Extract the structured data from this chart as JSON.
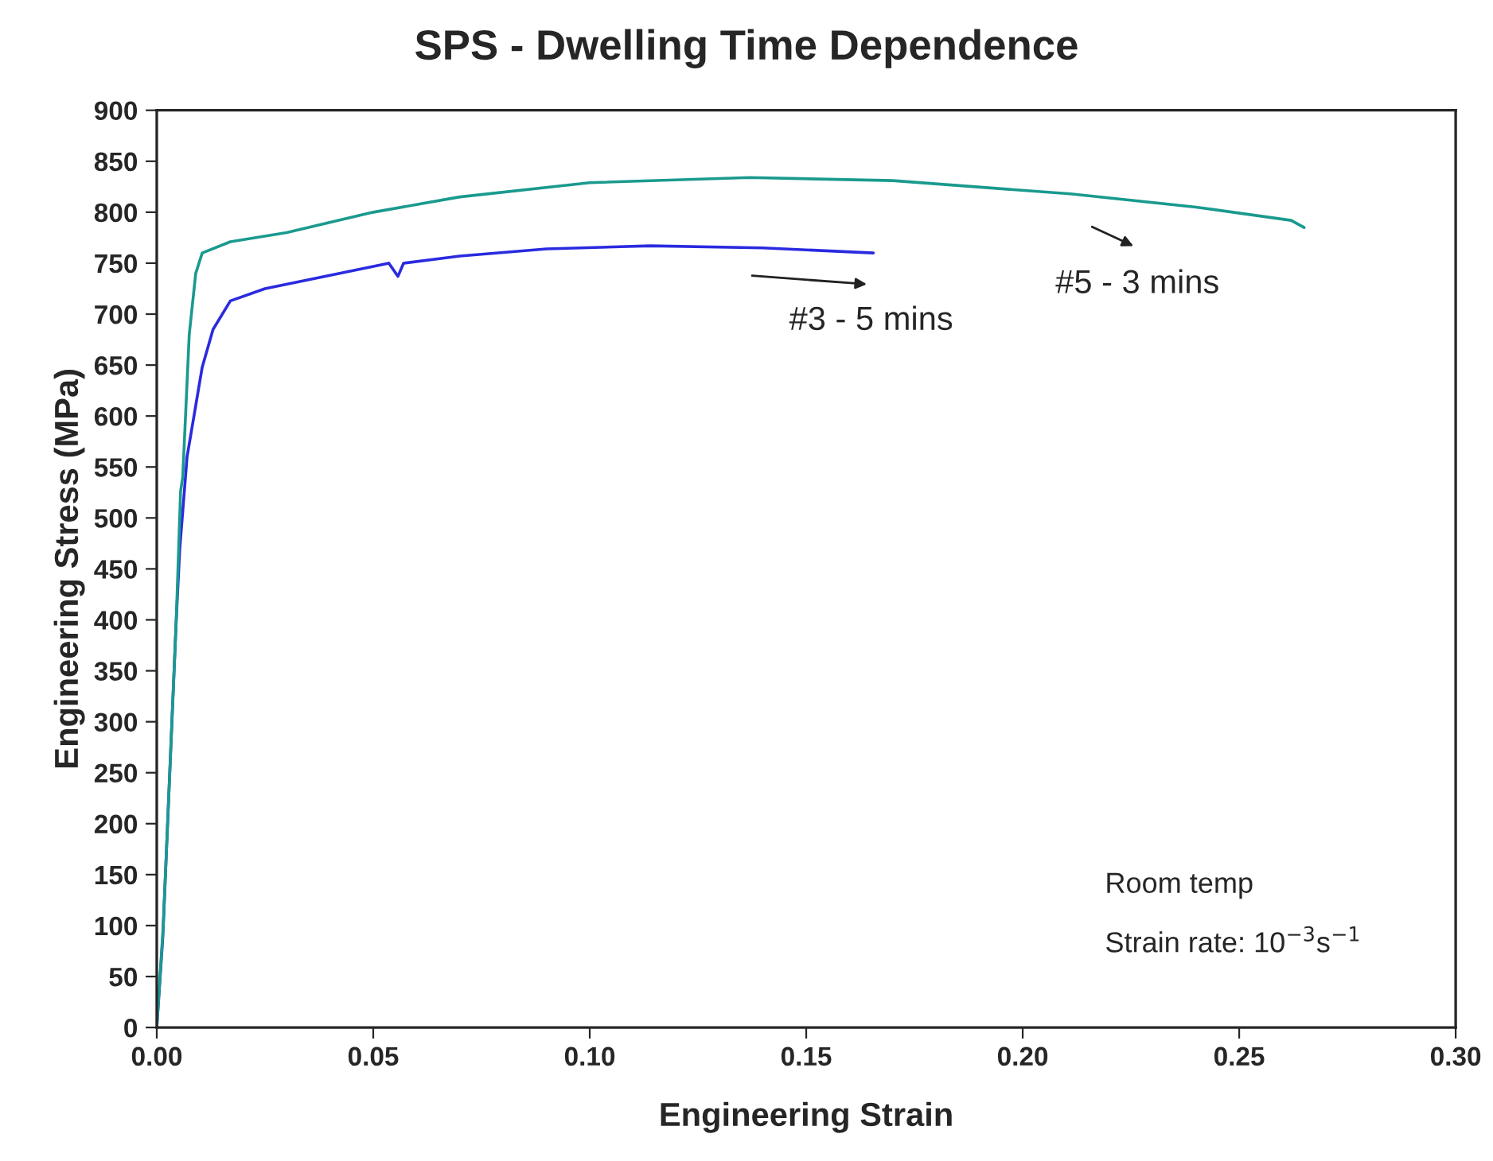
{
  "chart_data": {
    "type": "line",
    "title": "SPS - Dwelling Time Dependence",
    "xlabel": "Engineering Strain",
    "ylabel": "Engineering Stress (MPa)",
    "xlim": [
      0,
      0.3
    ],
    "xticks": [
      {
        "value": 0,
        "label": "0.00"
      },
      {
        "value": 0.05,
        "label": "0.05"
      },
      {
        "value": 0.1,
        "label": "0.10"
      },
      {
        "value": 0.15,
        "label": "0.15"
      },
      {
        "value": 0.2,
        "label": "0.20"
      },
      {
        "value": 0.25,
        "label": "0.25"
      },
      {
        "value": 0.3,
        "label": "0.30"
      }
    ],
    "ylim": [
      0,
      900
    ],
    "yticks": [
      0,
      50,
      100,
      150,
      200,
      250,
      300,
      350,
      400,
      450,
      500,
      550,
      600,
      650,
      700,
      750,
      800,
      850,
      900
    ],
    "grid": false,
    "marker": "none",
    "line_style": "solid",
    "series": [
      {
        "color": "#2a2ae0",
        "x": [
          0,
          0.0014,
          0.003,
          0.0045,
          0.0053,
          0.007,
          0.0105,
          0.013,
          0.017,
          0.025,
          0.04,
          0.0536,
          0.0557,
          0.057,
          0.07,
          0.09,
          0.114,
          0.14,
          0.1655
        ],
        "values": [
          0,
          89,
          250,
          400,
          469,
          560,
          648,
          685,
          713,
          725,
          738,
          750,
          737,
          750,
          757,
          764,
          767,
          765,
          760
        ]
      },
      {
        "color": "#1a9a8e",
        "x": [
          0,
          0.0015,
          0.003,
          0.0045,
          0.0055,
          0.006,
          0.0075,
          0.009,
          0.0105,
          0.017,
          0.03,
          0.05,
          0.07,
          0.1,
          0.137,
          0.17,
          0.211,
          0.24,
          0.262,
          0.265
        ],
        "values": [
          0,
          100,
          250,
          400,
          526,
          540,
          680,
          740,
          760,
          771,
          780,
          800,
          815,
          829,
          834,
          831,
          818,
          805,
          792,
          785
        ]
      }
    ],
    "annotations": [
      "#3 - 5 mins",
      "#5 - 3 mins",
      "Room temp",
      "Strain rate: 10$^{−3}$s$^{−1}$"
    ]
  }
}
